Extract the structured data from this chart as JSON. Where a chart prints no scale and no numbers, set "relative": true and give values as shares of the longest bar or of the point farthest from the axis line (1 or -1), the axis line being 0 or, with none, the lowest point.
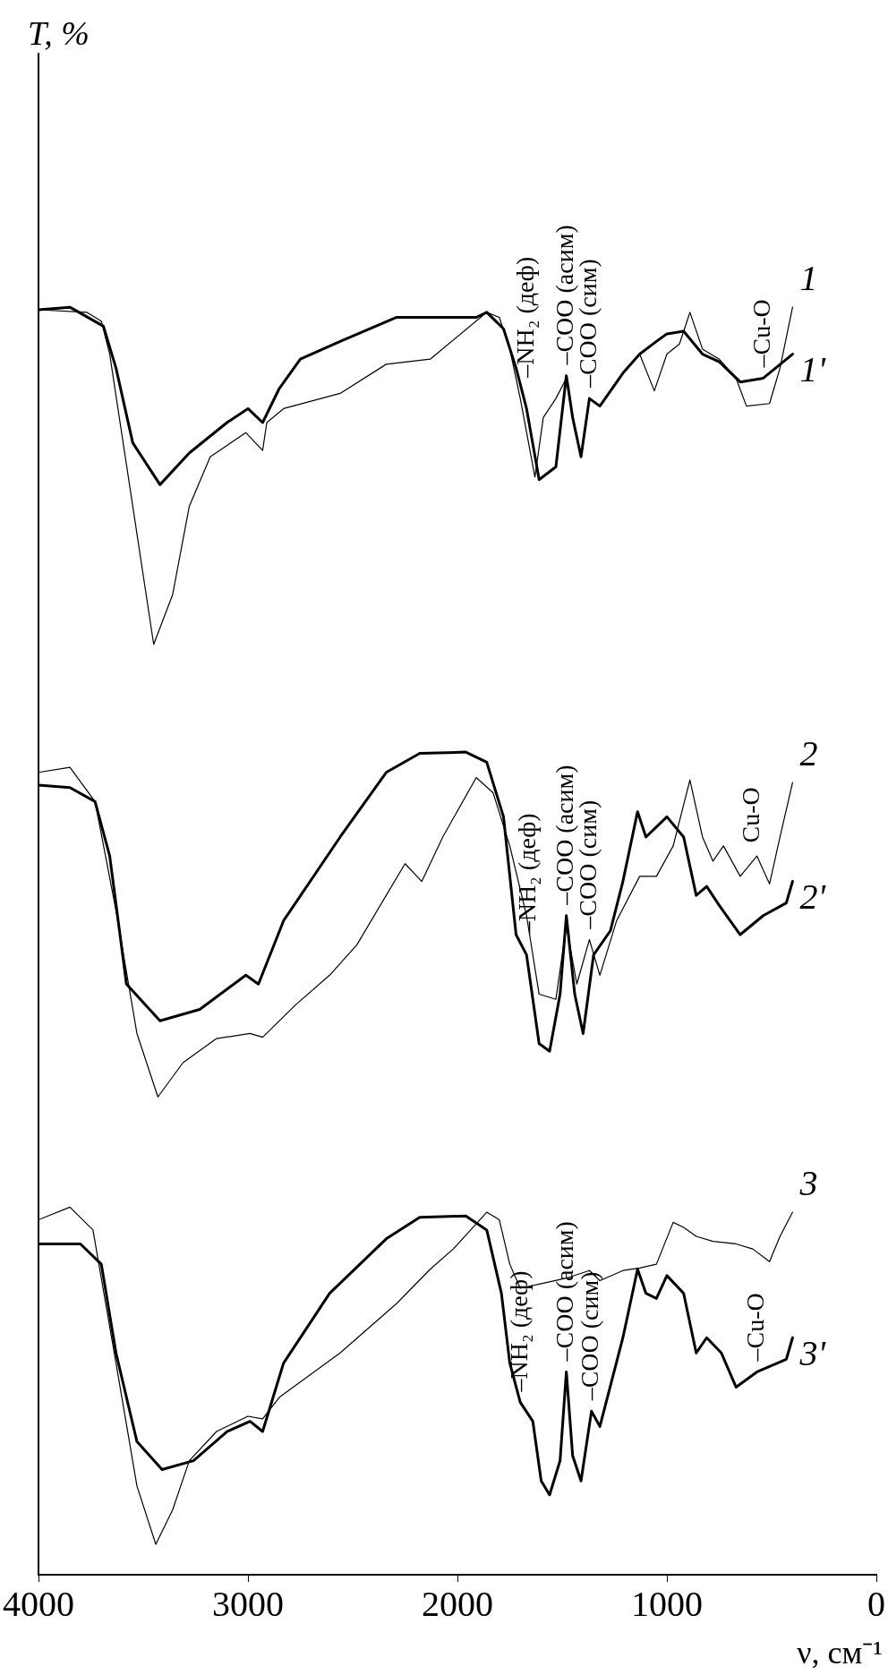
{
  "chart_data": {
    "type": "line",
    "relative": true,
    "xlabel": "ν, см⁻¹",
    "xlim": [
      4000,
      0
    ],
    "xticks": [
      4000,
      3000,
      2000,
      1000,
      0
    ],
    "legend": false,
    "marker": "none",
    "line_style": "solid",
    "series": [
      {
        "name": "1",
        "color": "#000000",
        "x": [
          4000,
          3770,
          3700,
          3660,
          3550,
          3450,
          3360,
          3280,
          3180,
          3010,
          2930,
          2910,
          2830,
          2560,
          2340,
          2130,
          1860,
          1800,
          1750,
          1700,
          1630,
          1590,
          1530,
          1480,
          1450,
          1410,
          1370,
          1320,
          1210,
          1130,
          1060,
          1000,
          940,
          890,
          830,
          750,
          670,
          620,
          510,
          460,
          400
        ],
        "values": [
          0.998,
          0.996,
          0.989,
          0.963,
          0.843,
          0.734,
          0.773,
          0.843,
          0.882,
          0.901,
          0.887,
          0.909,
          0.92,
          0.932,
          0.955,
          0.959,
          0.996,
          0.992,
          0.967,
          0.928,
          0.866,
          0.913,
          0.928,
          0.944,
          0.913,
          0.882,
          0.928,
          0.922,
          0.948,
          0.963,
          0.934,
          0.963,
          0.971,
          0.996,
          0.967,
          0.959,
          0.944,
          0.922,
          0.924,
          0.952,
          1.0
        ]
      },
      {
        "name": "1'",
        "color": "#000000",
        "x": [
          4000,
          3850,
          3690,
          3630,
          3550,
          3420,
          3280,
          3100,
          3000,
          2930,
          2850,
          2750,
          2560,
          2290,
          1910,
          1860,
          1780,
          1720,
          1670,
          1610,
          1530,
          1480,
          1450,
          1410,
          1370,
          1320,
          1210,
          1130,
          1050,
          1000,
          920,
          830,
          750,
          650,
          540,
          400
        ],
        "values": [
          0.998,
          1.0,
          0.985,
          0.952,
          0.893,
          0.86,
          0.885,
          0.909,
          0.92,
          0.909,
          0.936,
          0.959,
          0.973,
          0.992,
          0.992,
          0.996,
          0.983,
          0.952,
          0.92,
          0.864,
          0.874,
          0.946,
          0.913,
          0.882,
          0.928,
          0.922,
          0.948,
          0.963,
          0.973,
          0.979,
          0.981,
          0.963,
          0.957,
          0.941,
          0.944,
          0.963
        ]
      },
      {
        "name": "2",
        "color": "#000000",
        "x": [
          4000,
          3850,
          3730,
          3630,
          3530,
          3430,
          3310,
          3150,
          2990,
          2930,
          2770,
          2610,
          2480,
          2340,
          2250,
          2170,
          2070,
          1910,
          1830,
          1750,
          1670,
          1610,
          1530,
          1480,
          1430,
          1370,
          1320,
          1240,
          1130,
          1050,
          970,
          890,
          830,
          780,
          730,
          650,
          570,
          510,
          460,
          400
        ],
        "values": [
          0.633,
          0.637,
          0.61,
          0.524,
          0.427,
          0.377,
          0.404,
          0.423,
          0.427,
          0.424,
          0.45,
          0.473,
          0.497,
          0.536,
          0.561,
          0.547,
          0.582,
          0.629,
          0.617,
          0.575,
          0.52,
          0.458,
          0.454,
          0.512,
          0.466,
          0.501,
          0.473,
          0.516,
          0.551,
          0.551,
          0.575,
          0.627,
          0.582,
          0.563,
          0.575,
          0.551,
          0.567,
          0.545,
          0.582,
          0.625
        ]
      },
      {
        "name": "2'",
        "color": "#000000",
        "x": [
          4000,
          3850,
          3730,
          3660,
          3580,
          3420,
          3230,
          3010,
          2950,
          2830,
          2560,
          2340,
          2180,
          1960,
          1860,
          1780,
          1720,
          1670,
          1610,
          1560,
          1510,
          1480,
          1440,
          1400,
          1350,
          1270,
          1210,
          1140,
          1100,
          1000,
          920,
          860,
          810,
          750,
          650,
          540,
          430,
          400
        ],
        "values": [
          0.623,
          0.621,
          0.61,
          0.567,
          0.466,
          0.437,
          0.446,
          0.473,
          0.466,
          0.516,
          0.582,
          0.633,
          0.648,
          0.649,
          0.641,
          0.598,
          0.505,
          0.489,
          0.419,
          0.413,
          0.458,
          0.52,
          0.458,
          0.427,
          0.489,
          0.508,
          0.547,
          0.602,
          0.582,
          0.598,
          0.582,
          0.536,
          0.543,
          0.528,
          0.505,
          0.52,
          0.53,
          0.547
        ]
      },
      {
        "name": "3",
        "color": "#000000",
        "x": [
          4000,
          3850,
          3740,
          3630,
          3530,
          3440,
          3360,
          3280,
          3150,
          3000,
          2930,
          2850,
          2560,
          2290,
          2130,
          2020,
          1860,
          1800,
          1750,
          1700,
          1590,
          1480,
          1370,
          1320,
          1210,
          1130,
          1050,
          970,
          920,
          860,
          780,
          670,
          590,
          510,
          460,
          400
        ],
        "values": [
          0.28,
          0.29,
          0.272,
          0.167,
          0.07,
          0.024,
          0.051,
          0.09,
          0.113,
          0.125,
          0.123,
          0.14,
          0.175,
          0.214,
          0.241,
          0.257,
          0.286,
          0.28,
          0.245,
          0.226,
          0.23,
          0.234,
          0.24,
          0.232,
          0.24,
          0.242,
          0.245,
          0.278,
          0.274,
          0.267,
          0.263,
          0.261,
          0.257,
          0.247,
          0.267,
          0.286
        ]
      },
      {
        "name": "3'",
        "color": "#000000",
        "x": [
          4000,
          3800,
          3700,
          3630,
          3530,
          3410,
          3260,
          3100,
          2990,
          2930,
          2830,
          2610,
          2340,
          2180,
          1960,
          1860,
          1790,
          1750,
          1700,
          1640,
          1600,
          1560,
          1510,
          1480,
          1450,
          1410,
          1360,
          1320,
          1210,
          1140,
          1100,
          1050,
          1000,
          920,
          860,
          810,
          740,
          670,
          570,
          430,
          400
        ],
        "values": [
          0.261,
          0.261,
          0.245,
          0.175,
          0.105,
          0.083,
          0.09,
          0.113,
          0.121,
          0.113,
          0.167,
          0.222,
          0.265,
          0.282,
          0.283,
          0.272,
          0.222,
          0.167,
          0.136,
          0.121,
          0.074,
          0.063,
          0.09,
          0.16,
          0.094,
          0.074,
          0.129,
          0.117,
          0.187,
          0.241,
          0.222,
          0.218,
          0.236,
          0.222,
          0.175,
          0.187,
          0.175,
          0.148,
          0.16,
          0.17,
          0.187
        ]
      }
    ],
    "annotations": [
      "T, %",
      {
        "text": "–NH₂ (деф)",
        "x": 1670,
        "y": 0.936
      },
      {
        "text": "–COO (асим)",
        "x": 1480,
        "y": 0.946
      },
      {
        "text": "–COO (сим)",
        "x": 1370,
        "y": 0.928
      },
      {
        "text": "–Cu-O",
        "x": 540,
        "y": 0.944
      },
      {
        "text": "–NH₂ (деф)",
        "x": 1660,
        "y": 0.497
      },
      {
        "text": "–COO (асим)",
        "x": 1480,
        "y": 0.52
      },
      {
        "text": "–COO (сим)",
        "x": 1370,
        "y": 0.501
      },
      {
        "text": "Cu-O",
        "x": 590,
        "y": 0.569
      },
      {
        "text": "–NH₂ (деф)",
        "x": 1700,
        "y": 0.136
      },
      {
        "text": "–COO (асим)",
        "x": 1480,
        "y": 0.16
      },
      {
        "text": "–COO (сим)",
        "x": 1360,
        "y": 0.129
      },
      {
        "text": "–Cu-O",
        "x": 570,
        "y": 0.16
      }
    ]
  }
}
